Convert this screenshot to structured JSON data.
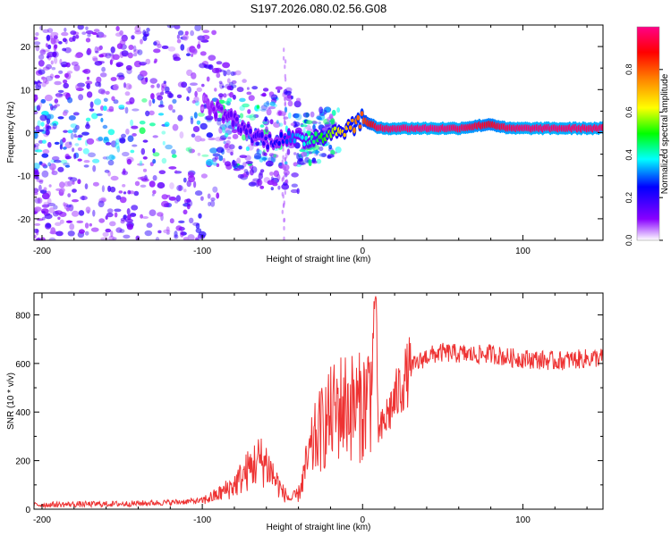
{
  "title": "S197.2026.080.02.56.G08",
  "chart_data": [
    {
      "type": "heatmap",
      "xlabel": "Height of straight line (km)",
      "ylabel": "Frequency (Hz)",
      "xlim": [
        -205,
        150
      ],
      "ylim": [
        -25,
        25
      ],
      "xticks": [
        -200,
        -100,
        0,
        100
      ],
      "xtick_labels": [
        "-200",
        "-100",
        "0",
        "100"
      ],
      "yticks": [
        -20,
        -10,
        0,
        10,
        20
      ],
      "ytick_labels": [
        "-20",
        "-10",
        "0",
        "10",
        "20"
      ],
      "colorbar": {
        "label": "Normalized spectral amplitude",
        "range": [
          0,
          1
        ],
        "ticks": [
          0.0,
          0.2,
          0.4,
          0.6,
          0.8
        ],
        "tick_labels": [
          "0.0",
          "0.2",
          "0.4",
          "0.6",
          "0.8"
        ]
      },
      "ridge": {
        "description": "dominant frequency track",
        "x": [
          -100,
          -90,
          -80,
          -70,
          -60,
          -50,
          -40,
          -30,
          -20,
          -10,
          0,
          10,
          20,
          40,
          60,
          80,
          90,
          100,
          120,
          150
        ],
        "freq": [
          7,
          5,
          3,
          0,
          -2,
          -1,
          -2,
          -1,
          0,
          1,
          3,
          1,
          1,
          1,
          1,
          2,
          1,
          1,
          1,
          1
        ],
        "amplitude": [
          0.05,
          0.12,
          0.15,
          0.18,
          0.2,
          0.25,
          0.35,
          0.45,
          0.55,
          0.7,
          0.8,
          0.95,
          0.97,
          0.98,
          0.96,
          0.9,
          0.95,
          0.97,
          0.97,
          0.96
        ]
      }
    },
    {
      "type": "line",
      "xlabel": "Height of straight line (km)",
      "ylabel": "SNR (10 * v/v)",
      "xlim": [
        -205,
        150
      ],
      "ylim": [
        0,
        890
      ],
      "xticks": [
        -200,
        -100,
        0,
        100
      ],
      "xtick_labels": [
        "-200",
        "-100",
        "0",
        "100"
      ],
      "yticks": [
        0,
        200,
        400,
        600,
        800
      ],
      "ytick_labels": [
        "0",
        "200",
        "400",
        "600",
        "800"
      ],
      "series": [
        {
          "name": "SNR",
          "color": "#ee3333",
          "x": [
            -205,
            -180,
            -150,
            -120,
            -100,
            -90,
            -80,
            -70,
            -65,
            -60,
            -55,
            -50,
            -45,
            -40,
            -35,
            -30,
            -25,
            -20,
            -15,
            -10,
            -5,
            0,
            5,
            8,
            10,
            15,
            20,
            25,
            30,
            40,
            50,
            60,
            70,
            80,
            90,
            100,
            110,
            120,
            130,
            140,
            150
          ],
          "y": [
            18,
            20,
            22,
            28,
            35,
            60,
            100,
            170,
            200,
            190,
            130,
            70,
            40,
            60,
            180,
            280,
            340,
            380,
            420,
            430,
            420,
            420,
            500,
            860,
            300,
            380,
            450,
            520,
            580,
            630,
            645,
            640,
            635,
            640,
            625,
            620,
            615,
            610,
            615,
            620,
            625
          ]
        }
      ]
    }
  ]
}
